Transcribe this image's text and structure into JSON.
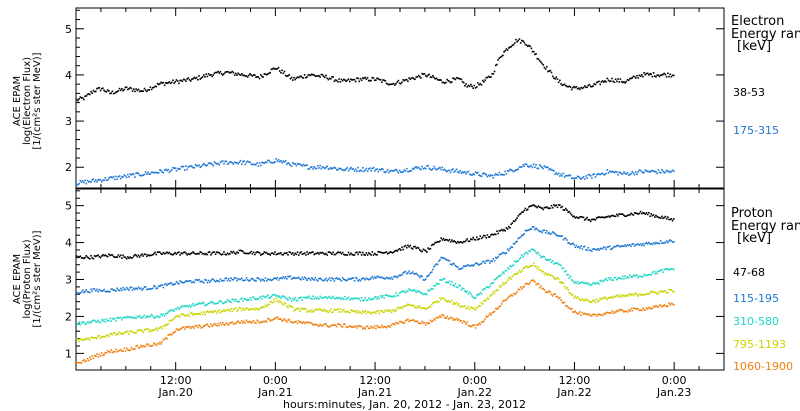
{
  "title_x": "hours:minutes, Jan. 20, 2012 - Jan. 23, 2012",
  "x_ticks": [
    {
      "t": 12,
      "hm": "12:00",
      "day": "Jan.20"
    },
    {
      "t": 24,
      "hm": "0:00",
      "day": "Jan.21"
    },
    {
      "t": 36,
      "hm": "12:00",
      "day": "Jan.21"
    },
    {
      "t": 48,
      "hm": "0:00",
      "day": "Jan.22"
    },
    {
      "t": 60,
      "hm": "12:00",
      "day": "Jan.22"
    },
    {
      "t": 72,
      "hm": "0:00",
      "day": "Jan.23"
    }
  ],
  "colors": {
    "black": "#000000",
    "blue": "#1f78d4",
    "cyan": "#1fd6c6",
    "yellow": "#c8d400",
    "orange": "#f07f10"
  },
  "electron": {
    "ylabel_lines": [
      "ACE EPAM",
      "log(Electron Flux)",
      "[1/(cm²s ster MeV)]"
    ],
    "legend_title": "Electron",
    "legend_sub": "Energy ran",
    "legend_unit": "[keV]",
    "channels": [
      "38-53",
      "175-315"
    ]
  },
  "proton": {
    "ylabel_lines": [
      "ACE EPAM",
      "log(Proton Flux)",
      "[1/(cm²s ster MeV)]"
    ],
    "legend_title": "Proton",
    "legend_sub": "Energy ran",
    "legend_unit": "[keV]",
    "channels": [
      "47-68",
      "115-195",
      "310-580",
      "795-1193",
      "1060-1900"
    ]
  },
  "chart_data": [
    {
      "type": "scatter",
      "panel": "electron",
      "xlabel": "hours:minutes, Jan. 20, 2012 - Jan. 23, 2012",
      "ylabel": "ACE EPAM log(Electron Flux) [1/(cm²s ster MeV)]",
      "xlim_hours": [
        0,
        78
      ],
      "ylim": [
        1.55,
        5.45
      ],
      "yticks": [
        2,
        3,
        4,
        5
      ],
      "series": [
        {
          "name": "38-53",
          "color": "#000000",
          "x": [
            0,
            1,
            2,
            3,
            4,
            6,
            8,
            10,
            12,
            14,
            16,
            18,
            20,
            22,
            24,
            26,
            28,
            30,
            32,
            34,
            36,
            38,
            40,
            42,
            44,
            46,
            47,
            48,
            49,
            50,
            51,
            52,
            53,
            54,
            55,
            56,
            57,
            58,
            59,
            60,
            62,
            64,
            66,
            68,
            70,
            72
          ],
          "y": [
            3.45,
            3.5,
            3.65,
            3.7,
            3.6,
            3.7,
            3.65,
            3.8,
            3.85,
            3.9,
            4.0,
            4.05,
            4.0,
            3.95,
            4.15,
            3.9,
            4.0,
            3.95,
            3.85,
            3.9,
            3.9,
            3.8,
            3.9,
            4.0,
            3.85,
            3.9,
            3.75,
            3.75,
            3.85,
            4.0,
            4.4,
            4.6,
            4.75,
            4.7,
            4.5,
            4.25,
            4.05,
            3.85,
            3.75,
            3.7,
            3.75,
            3.9,
            3.85,
            4.0,
            4.0,
            4.0
          ]
        },
        {
          "name": "175-315",
          "color": "#1f78d4",
          "x": [
            0,
            2,
            4,
            6,
            8,
            10,
            12,
            14,
            16,
            18,
            20,
            22,
            24,
            26,
            28,
            30,
            32,
            34,
            36,
            38,
            40,
            42,
            44,
            46,
            48,
            50,
            52,
            54,
            56,
            58,
            60,
            62,
            64,
            66,
            68,
            70,
            72
          ],
          "y": [
            1.65,
            1.7,
            1.75,
            1.8,
            1.85,
            1.9,
            1.95,
            2.0,
            2.05,
            2.1,
            2.1,
            2.05,
            2.15,
            2.05,
            2.0,
            2.0,
            1.95,
            1.95,
            1.95,
            1.9,
            1.95,
            2.0,
            1.95,
            1.9,
            1.85,
            1.8,
            1.9,
            2.05,
            2.0,
            1.85,
            1.75,
            1.8,
            1.9,
            1.85,
            1.9,
            1.9,
            1.9
          ]
        }
      ]
    },
    {
      "type": "scatter",
      "panel": "proton",
      "xlabel": "hours:minutes, Jan. 20, 2012 - Jan. 23, 2012",
      "ylabel": "ACE EPAM log(Proton Flux) [1/(cm²s ster MeV)]",
      "xlim_hours": [
        0,
        78
      ],
      "ylim": [
        0.55,
        5.45
      ],
      "yticks": [
        1,
        2,
        3,
        4,
        5
      ],
      "series": [
        {
          "name": "47-68",
          "color": "#000000",
          "x": [
            0,
            2,
            4,
            6,
            8,
            10,
            12,
            14,
            16,
            18,
            20,
            22,
            24,
            26,
            28,
            30,
            32,
            34,
            36,
            38,
            40,
            42,
            44,
            46,
            48,
            50,
            52,
            54,
            55,
            56,
            58,
            60,
            62,
            64,
            66,
            68,
            70,
            72
          ],
          "y": [
            3.6,
            3.6,
            3.65,
            3.6,
            3.65,
            3.7,
            3.7,
            3.7,
            3.7,
            3.7,
            3.75,
            3.7,
            3.7,
            3.7,
            3.7,
            3.7,
            3.7,
            3.7,
            3.7,
            3.75,
            3.9,
            3.75,
            4.1,
            4.0,
            4.1,
            4.2,
            4.4,
            4.9,
            5.0,
            4.9,
            5.0,
            4.7,
            4.6,
            4.7,
            4.75,
            4.8,
            4.7,
            4.6
          ]
        },
        {
          "name": "115-195",
          "color": "#1f78d4",
          "x": [
            0,
            2,
            4,
            6,
            8,
            10,
            12,
            14,
            16,
            18,
            20,
            22,
            24,
            26,
            28,
            30,
            32,
            34,
            36,
            38,
            40,
            42,
            44,
            46,
            48,
            50,
            52,
            54,
            55,
            56,
            58,
            60,
            62,
            64,
            66,
            68,
            70,
            72
          ],
          "y": [
            2.65,
            2.7,
            2.7,
            2.75,
            2.75,
            2.8,
            2.9,
            2.95,
            2.95,
            3.0,
            3.0,
            3.0,
            3.0,
            3.05,
            3.0,
            3.0,
            3.0,
            3.0,
            3.05,
            3.05,
            3.2,
            3.0,
            3.6,
            3.3,
            3.4,
            3.5,
            3.8,
            4.3,
            4.4,
            4.3,
            4.2,
            3.9,
            3.8,
            3.85,
            3.9,
            3.95,
            4.0,
            4.05
          ]
        },
        {
          "name": "310-580",
          "color": "#1fd6c6",
          "x": [
            0,
            2,
            4,
            6,
            8,
            10,
            12,
            14,
            16,
            18,
            20,
            22,
            24,
            26,
            28,
            30,
            32,
            34,
            36,
            38,
            40,
            42,
            44,
            46,
            48,
            50,
            52,
            54,
            55,
            56,
            58,
            60,
            62,
            64,
            66,
            68,
            70,
            72
          ],
          "y": [
            1.8,
            1.85,
            1.9,
            1.95,
            2.0,
            2.0,
            2.2,
            2.3,
            2.35,
            2.4,
            2.45,
            2.5,
            2.55,
            2.45,
            2.5,
            2.5,
            2.5,
            2.45,
            2.5,
            2.55,
            2.7,
            2.6,
            3.0,
            2.8,
            2.5,
            2.9,
            3.3,
            3.7,
            3.8,
            3.6,
            3.4,
            2.9,
            2.85,
            3.0,
            3.05,
            3.1,
            3.2,
            3.3
          ]
        },
        {
          "name": "795-1193",
          "color": "#c8d400",
          "x": [
            0,
            2,
            4,
            6,
            8,
            10,
            12,
            14,
            16,
            18,
            20,
            22,
            24,
            26,
            28,
            30,
            32,
            34,
            36,
            38,
            40,
            42,
            44,
            46,
            48,
            50,
            52,
            54,
            55,
            56,
            58,
            60,
            62,
            64,
            66,
            68,
            70,
            72
          ],
          "y": [
            1.35,
            1.4,
            1.5,
            1.55,
            1.6,
            1.65,
            2.0,
            2.05,
            2.1,
            2.15,
            2.2,
            2.2,
            2.45,
            2.2,
            2.15,
            2.15,
            2.15,
            2.1,
            2.1,
            2.15,
            2.3,
            2.2,
            2.5,
            2.3,
            2.2,
            2.6,
            3.0,
            3.3,
            3.4,
            3.2,
            3.0,
            2.5,
            2.4,
            2.5,
            2.55,
            2.6,
            2.65,
            2.7
          ]
        },
        {
          "name": "1060-1900",
          "color": "#f07f10",
          "x": [
            0,
            2,
            4,
            6,
            8,
            10,
            12,
            14,
            16,
            18,
            20,
            22,
            24,
            26,
            28,
            30,
            32,
            34,
            36,
            38,
            40,
            42,
            44,
            46,
            48,
            50,
            52,
            54,
            55,
            56,
            58,
            60,
            62,
            64,
            66,
            68,
            70,
            72
          ],
          "y": [
            0.7,
            0.9,
            1.05,
            1.1,
            1.2,
            1.25,
            1.65,
            1.7,
            1.75,
            1.8,
            1.85,
            1.85,
            1.95,
            1.85,
            1.8,
            1.75,
            1.75,
            1.7,
            1.7,
            1.75,
            1.9,
            1.8,
            2.0,
            1.9,
            1.7,
            2.1,
            2.5,
            2.85,
            2.95,
            2.75,
            2.5,
            2.1,
            2.0,
            2.1,
            2.15,
            2.2,
            2.25,
            2.35
          ]
        }
      ]
    }
  ]
}
